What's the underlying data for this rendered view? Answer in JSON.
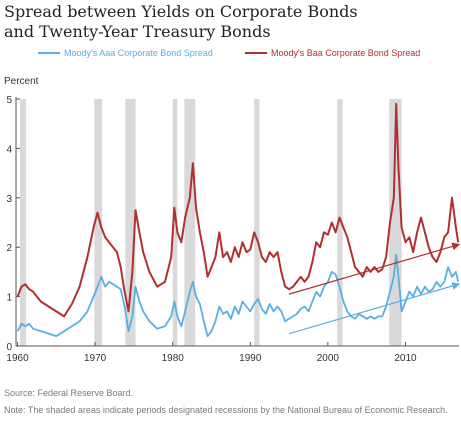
{
  "title_line1": "Spread between Yields on Corporate Bonds",
  "title_line2": "and Twenty-Year Treasury Bonds",
  "source": "Source: Federal Reserve Board.",
  "note": "Note: The shaded areas indicate periods designated recessions by the National Bureau of Economic Research.",
  "chart_data": {
    "type": "line",
    "ylabel": "Percent",
    "xlim": [
      1959.8,
      2016.9
    ],
    "ylim": [
      0,
      5
    ],
    "y_ticks": [
      0,
      1,
      2,
      3,
      4,
      5
    ],
    "x_ticks": [
      1960,
      1970,
      1980,
      1990,
      2000,
      2010
    ],
    "legend_position": "top",
    "grid": false,
    "recessions": [
      [
        1960.3,
        1961.1
      ],
      [
        1969.9,
        1970.9
      ],
      [
        1973.9,
        1975.2
      ],
      [
        1980.0,
        1980.6
      ],
      [
        1981.5,
        1982.9
      ],
      [
        1990.5,
        1991.2
      ],
      [
        2001.2,
        2001.9
      ],
      [
        2007.9,
        2009.5
      ]
    ],
    "series": [
      {
        "name": "Moody's Aaa Corporate Bond Spread",
        "color": "#5aaee0",
        "points": [
          [
            1960,
            0.3
          ],
          [
            1960.5,
            0.45
          ],
          [
            1961,
            0.4
          ],
          [
            1961.5,
            0.45
          ],
          [
            1962,
            0.35
          ],
          [
            1963,
            0.3
          ],
          [
            1964,
            0.25
          ],
          [
            1965,
            0.2
          ],
          [
            1966,
            0.3
          ],
          [
            1967,
            0.4
          ],
          [
            1968,
            0.5
          ],
          [
            1969,
            0.7
          ],
          [
            1969.8,
            1.0
          ],
          [
            1970.3,
            1.2
          ],
          [
            1970.8,
            1.4
          ],
          [
            1971.3,
            1.2
          ],
          [
            1971.8,
            1.3
          ],
          [
            1972.3,
            1.25
          ],
          [
            1972.8,
            1.2
          ],
          [
            1973.3,
            1.15
          ],
          [
            1973.8,
            0.8
          ],
          [
            1974.3,
            0.3
          ],
          [
            1974.8,
            0.6
          ],
          [
            1975.2,
            1.2
          ],
          [
            1975.7,
            0.9
          ],
          [
            1976.2,
            0.7
          ],
          [
            1977,
            0.5
          ],
          [
            1978,
            0.35
          ],
          [
            1979,
            0.4
          ],
          [
            1979.8,
            0.6
          ],
          [
            1980.2,
            0.9
          ],
          [
            1980.6,
            0.6
          ],
          [
            1981.1,
            0.4
          ],
          [
            1981.6,
            0.7
          ],
          [
            1982.2,
            1.1
          ],
          [
            1982.6,
            1.3
          ],
          [
            1983,
            1.0
          ],
          [
            1983.5,
            0.85
          ],
          [
            1984,
            0.5
          ],
          [
            1984.5,
            0.2
          ],
          [
            1985,
            0.3
          ],
          [
            1985.5,
            0.5
          ],
          [
            1986,
            0.8
          ],
          [
            1986.5,
            0.65
          ],
          [
            1987,
            0.7
          ],
          [
            1987.5,
            0.55
          ],
          [
            1988,
            0.8
          ],
          [
            1988.5,
            0.65
          ],
          [
            1989,
            0.9
          ],
          [
            1989.5,
            0.8
          ],
          [
            1990,
            0.7
          ],
          [
            1990.5,
            0.85
          ],
          [
            1991,
            0.95
          ],
          [
            1991.5,
            0.75
          ],
          [
            1992,
            0.65
          ],
          [
            1992.5,
            0.85
          ],
          [
            1993,
            0.7
          ],
          [
            1993.5,
            0.8
          ],
          [
            1994,
            0.7
          ],
          [
            1994.5,
            0.5
          ],
          [
            1995,
            0.55
          ],
          [
            1995.5,
            0.6
          ],
          [
            1996,
            0.65
          ],
          [
            1996.5,
            0.75
          ],
          [
            1997,
            0.8
          ],
          [
            1997.5,
            0.7
          ],
          [
            1998,
            0.9
          ],
          [
            1998.5,
            1.1
          ],
          [
            1999,
            1.0
          ],
          [
            1999.5,
            1.2
          ],
          [
            2000,
            1.3
          ],
          [
            2000.5,
            1.5
          ],
          [
            2001,
            1.45
          ],
          [
            2001.5,
            1.2
          ],
          [
            2002,
            0.9
          ],
          [
            2002.5,
            0.7
          ],
          [
            2003,
            0.6
          ],
          [
            2003.5,
            0.55
          ],
          [
            2004,
            0.65
          ],
          [
            2004.5,
            0.6
          ],
          [
            2005,
            0.55
          ],
          [
            2005.5,
            0.6
          ],
          [
            2006,
            0.55
          ],
          [
            2006.5,
            0.6
          ],
          [
            2007,
            0.6
          ],
          [
            2007.5,
            0.8
          ],
          [
            2008,
            1.1
          ],
          [
            2008.5,
            1.4
          ],
          [
            2008.8,
            1.85
          ],
          [
            2009.1,
            1.4
          ],
          [
            2009.5,
            0.7
          ],
          [
            2010,
            0.9
          ],
          [
            2010.5,
            1.1
          ],
          [
            2011,
            1.0
          ],
          [
            2011.5,
            1.2
          ],
          [
            2012,
            1.05
          ],
          [
            2012.5,
            1.2
          ],
          [
            2013,
            1.1
          ],
          [
            2013.5,
            1.15
          ],
          [
            2014,
            1.3
          ],
          [
            2014.5,
            1.2
          ],
          [
            2015,
            1.3
          ],
          [
            2015.5,
            1.6
          ],
          [
            2016,
            1.4
          ],
          [
            2016.5,
            1.5
          ],
          [
            2016.8,
            1.3
          ]
        ],
        "trend": [
          [
            1995,
            0.25
          ],
          [
            2016.8,
            1.25
          ]
        ]
      },
      {
        "name": "Moody's Baa Corporate Bond Spread",
        "color": "#b03030",
        "points": [
          [
            1960,
            1.0
          ],
          [
            1960.5,
            1.2
          ],
          [
            1961,
            1.25
          ],
          [
            1961.5,
            1.15
          ],
          [
            1962,
            1.1
          ],
          [
            1963,
            0.9
          ],
          [
            1964,
            0.8
          ],
          [
            1965,
            0.7
          ],
          [
            1966,
            0.6
          ],
          [
            1967,
            0.85
          ],
          [
            1968,
            1.2
          ],
          [
            1969,
            1.8
          ],
          [
            1969.8,
            2.4
          ],
          [
            1970.3,
            2.7
          ],
          [
            1970.8,
            2.4
          ],
          [
            1971.3,
            2.2
          ],
          [
            1971.8,
            2.1
          ],
          [
            1972.3,
            2.0
          ],
          [
            1972.8,
            1.9
          ],
          [
            1973.3,
            1.6
          ],
          [
            1973.8,
            1.1
          ],
          [
            1974.3,
            0.7
          ],
          [
            1974.8,
            1.5
          ],
          [
            1975.2,
            2.75
          ],
          [
            1975.7,
            2.3
          ],
          [
            1976.2,
            1.9
          ],
          [
            1977,
            1.5
          ],
          [
            1978,
            1.2
          ],
          [
            1979,
            1.3
          ],
          [
            1979.8,
            1.8
          ],
          [
            1980.2,
            2.8
          ],
          [
            1980.6,
            2.3
          ],
          [
            1981.1,
            2.1
          ],
          [
            1981.6,
            2.6
          ],
          [
            1982.2,
            3.0
          ],
          [
            1982.6,
            3.7
          ],
          [
            1983,
            2.8
          ],
          [
            1983.5,
            2.3
          ],
          [
            1984,
            1.9
          ],
          [
            1984.5,
            1.4
          ],
          [
            1985,
            1.6
          ],
          [
            1985.5,
            1.8
          ],
          [
            1986,
            2.3
          ],
          [
            1986.5,
            1.8
          ],
          [
            1987,
            1.9
          ],
          [
            1987.5,
            1.7
          ],
          [
            1988,
            2.0
          ],
          [
            1988.5,
            1.8
          ],
          [
            1989,
            2.1
          ],
          [
            1989.5,
            1.9
          ],
          [
            1990,
            1.95
          ],
          [
            1990.5,
            2.3
          ],
          [
            1991,
            2.1
          ],
          [
            1991.5,
            1.8
          ],
          [
            1992,
            1.7
          ],
          [
            1992.5,
            1.9
          ],
          [
            1993,
            1.8
          ],
          [
            1993.5,
            1.9
          ],
          [
            1994,
            1.5
          ],
          [
            1994.5,
            1.2
          ],
          [
            1995,
            1.15
          ],
          [
            1995.5,
            1.2
          ],
          [
            1996,
            1.3
          ],
          [
            1996.5,
            1.4
          ],
          [
            1997,
            1.3
          ],
          [
            1997.5,
            1.4
          ],
          [
            1998,
            1.7
          ],
          [
            1998.5,
            2.1
          ],
          [
            1999,
            2.0
          ],
          [
            1999.5,
            2.3
          ],
          [
            2000,
            2.25
          ],
          [
            2000.5,
            2.5
          ],
          [
            2001,
            2.3
          ],
          [
            2001.5,
            2.6
          ],
          [
            2002,
            2.4
          ],
          [
            2002.5,
            2.2
          ],
          [
            2003,
            1.9
          ],
          [
            2003.5,
            1.6
          ],
          [
            2004,
            1.5
          ],
          [
            2004.5,
            1.4
          ],
          [
            2005,
            1.6
          ],
          [
            2005.5,
            1.5
          ],
          [
            2006,
            1.6
          ],
          [
            2006.5,
            1.5
          ],
          [
            2007,
            1.55
          ],
          [
            2007.5,
            1.8
          ],
          [
            2008,
            2.5
          ],
          [
            2008.5,
            3.0
          ],
          [
            2008.8,
            4.9
          ],
          [
            2009.1,
            3.6
          ],
          [
            2009.5,
            2.4
          ],
          [
            2010,
            2.1
          ],
          [
            2010.5,
            2.2
          ],
          [
            2011,
            1.9
          ],
          [
            2011.5,
            2.3
          ],
          [
            2012,
            2.6
          ],
          [
            2012.5,
            2.3
          ],
          [
            2013,
            2.0
          ],
          [
            2013.5,
            1.8
          ],
          [
            2014,
            1.7
          ],
          [
            2014.5,
            1.9
          ],
          [
            2015,
            2.2
          ],
          [
            2015.5,
            2.3
          ],
          [
            2016,
            3.0
          ],
          [
            2016.5,
            2.4
          ],
          [
            2016.8,
            2.1
          ]
        ],
        "trend": [
          [
            1995,
            1.05
          ],
          [
            2016.8,
            2.05
          ]
        ]
      }
    ]
  }
}
